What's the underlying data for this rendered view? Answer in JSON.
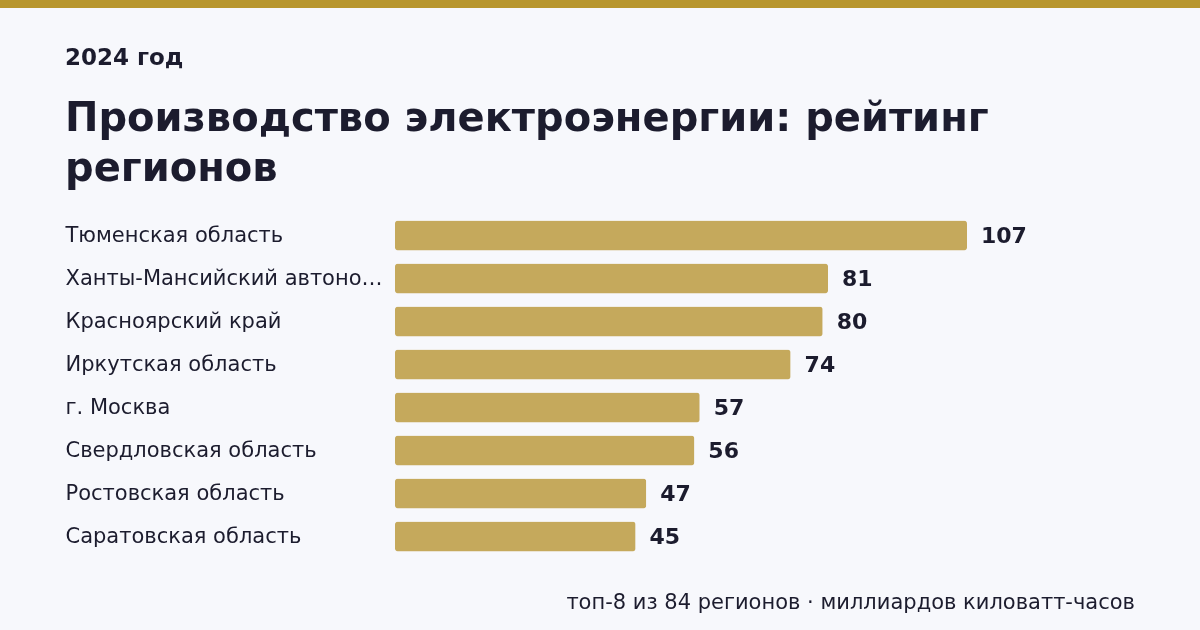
{
  "chart_data": {
    "type": "bar",
    "orientation": "horizontal",
    "subtitle": "2024 год",
    "title": "Производство электроэнергии: рейтинг регионов",
    "categories": [
      "Тюменская область",
      "Ханты-Мансийский автоно…",
      "Красноярский край",
      "Иркутская область",
      "г. Москва",
      "Свердловская область",
      "Ростовская область",
      "Саратовская область"
    ],
    "series": [
      {
        "color": "#c5a95c",
        "values": [
          107,
          81,
          80,
          74,
          57,
          56,
          47,
          45
        ]
      }
    ],
    "data_labels": true,
    "annotations": [
      "топ-8 из 84 регионов · миллиардов киловатт-часов"
    ]
  }
}
